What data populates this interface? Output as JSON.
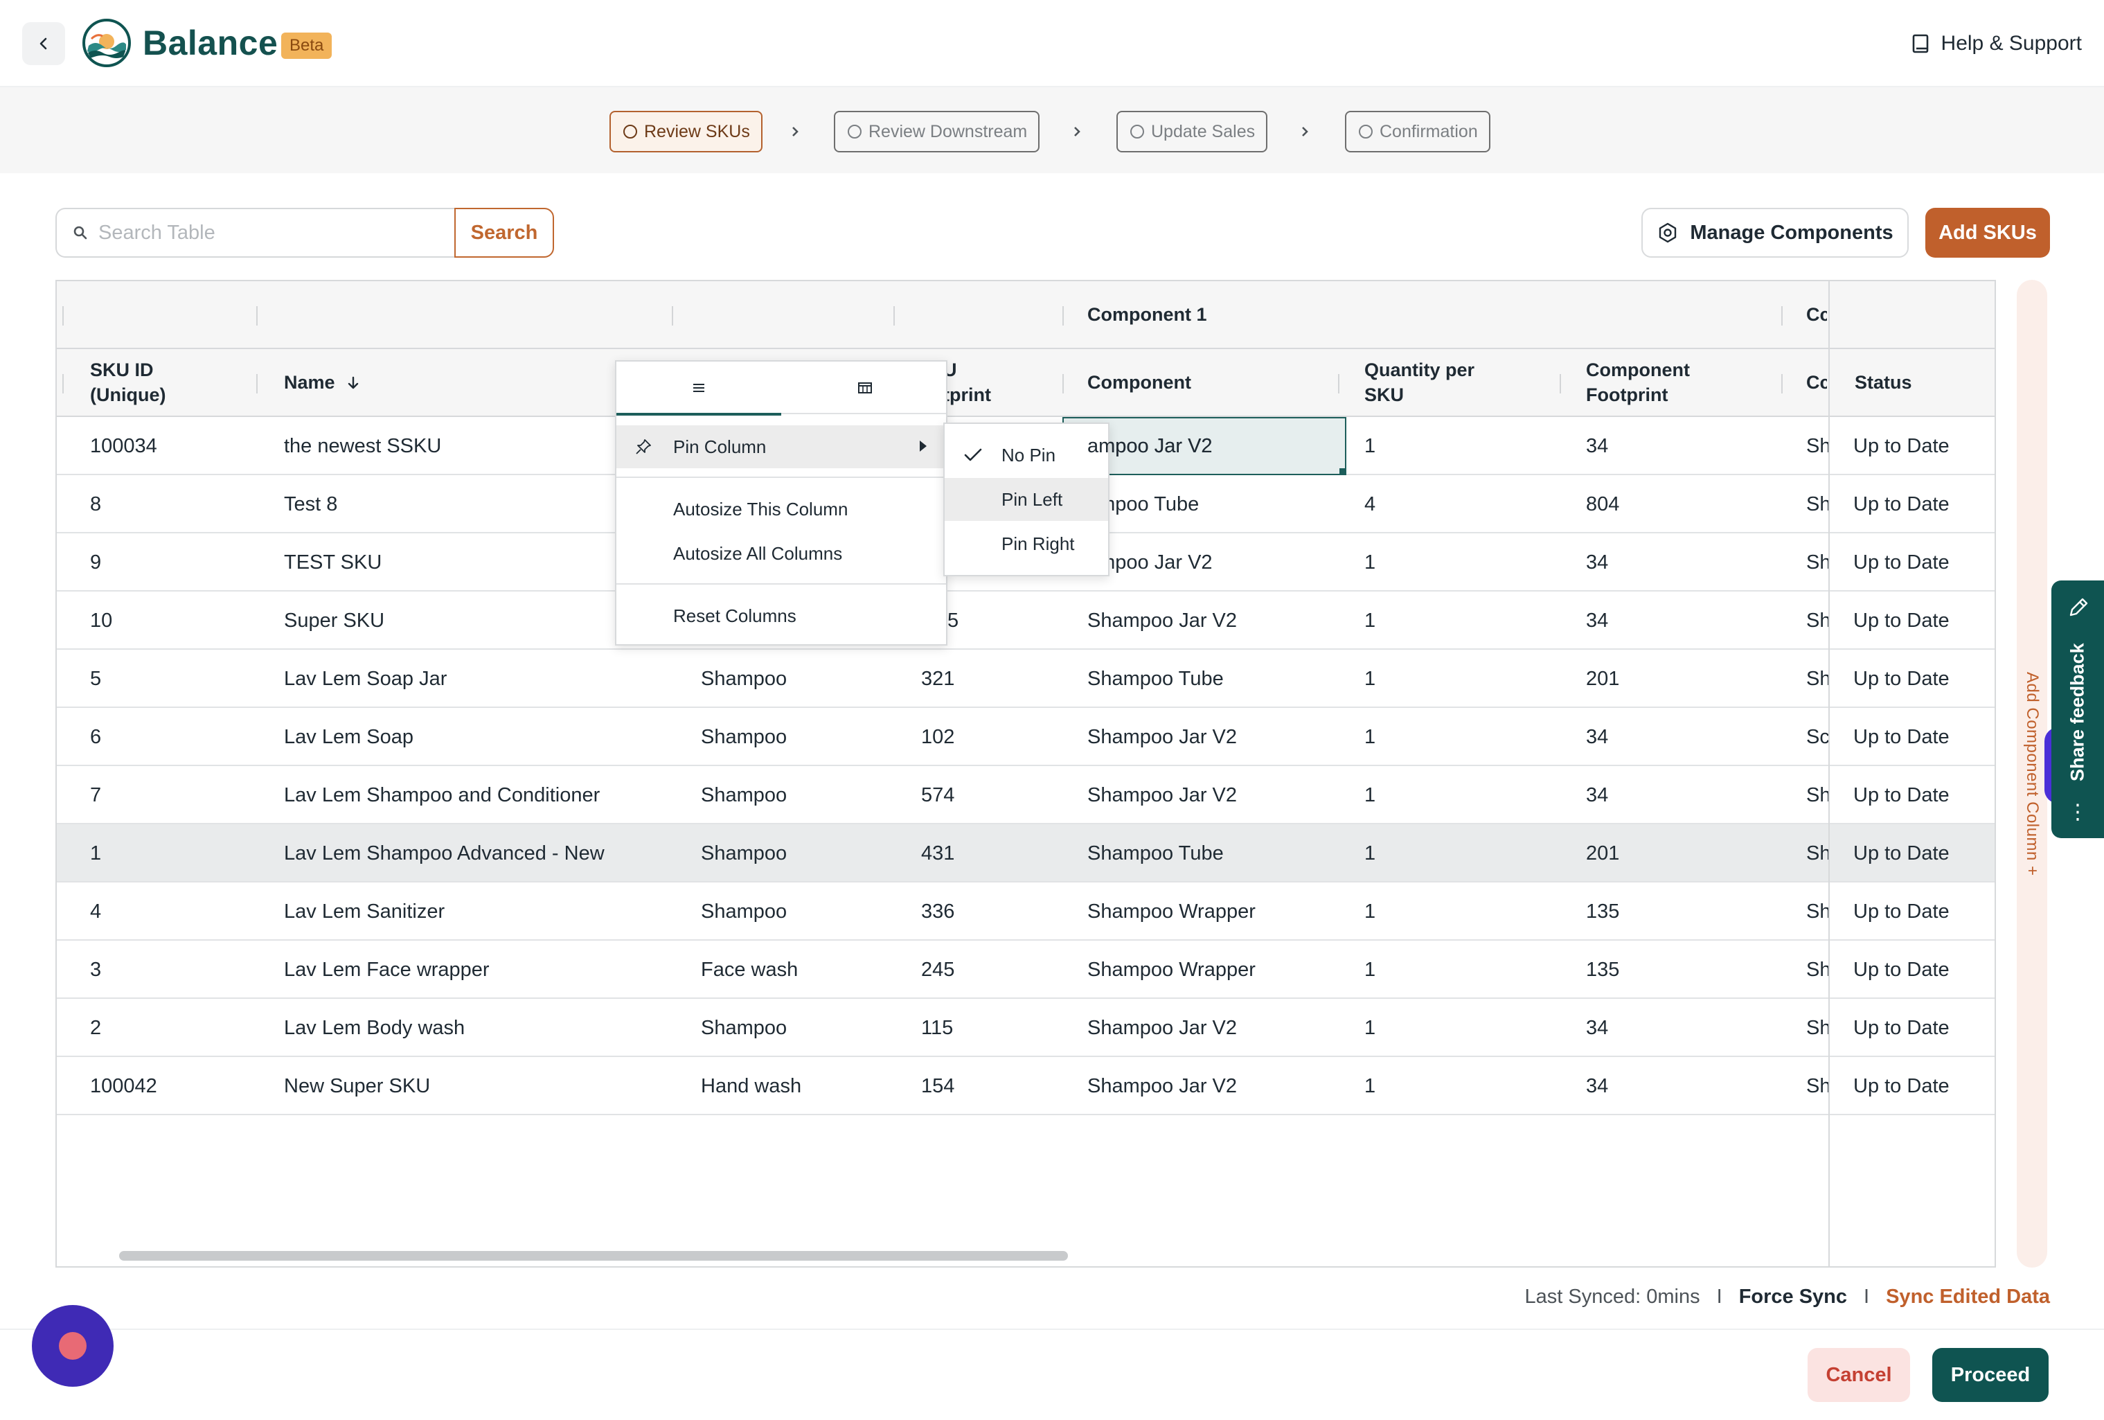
{
  "header": {
    "brand": "Balance",
    "badge": "Beta",
    "help_label": "Help & Support"
  },
  "steps": [
    {
      "label": "Review SKUs",
      "active": true
    },
    {
      "label": "Review Downstream",
      "active": false
    },
    {
      "label": "Update Sales",
      "active": false
    },
    {
      "label": "Confirmation",
      "active": false
    }
  ],
  "toolbar": {
    "search_placeholder": "Search Table",
    "search_label": "Search",
    "manage_label": "Manage Components",
    "add_label": "Add SKUs"
  },
  "table": {
    "group_headers": {
      "component_1": "Component 1",
      "component_2_partial": "Cc"
    },
    "columns": {
      "sku_id_line1": "SKU ID",
      "sku_id_line2": "(Unique)",
      "name": "Name",
      "footprint_line1": "U",
      "footprint_line2": "tprint",
      "component": "Component",
      "qty_line1": "Quantity per",
      "qty_line2": "SKU",
      "comp_fp_line1": "Component",
      "comp_fp_line2": "Footprint",
      "comp2_partial": "Cc",
      "status": "Status"
    },
    "rows": [
      {
        "sku": "100034",
        "name": "the newest SSKU",
        "category": "",
        "footprint": "",
        "component": "ampoo Jar V2",
        "qty": "1",
        "comp_fp": "34",
        "c2": "Sh",
        "status": "Up to Date"
      },
      {
        "sku": "8",
        "name": "Test 8",
        "category": "",
        "footprint": "",
        "component": "ampoo Tube",
        "qty": "4",
        "comp_fp": "804",
        "c2": "Sh",
        "status": "Up to Date"
      },
      {
        "sku": "9",
        "name": "TEST SKU",
        "category": "",
        "footprint": "",
        "component": "ampoo Jar V2",
        "qty": "1",
        "comp_fp": "34",
        "c2": "Sh",
        "status": "Up to Date"
      },
      {
        "sku": "10",
        "name": "Super SKU",
        "category": "",
        "footprint": "",
        "component": "Shampoo Jar V2",
        "qty": "1",
        "comp_fp": "34",
        "c2": "Sh",
        "status": "Up to Date"
      },
      {
        "sku": "5",
        "name": "Lav Lem Soap Jar",
        "category": "Shampoo",
        "footprint": "321",
        "component": "Shampoo Tube",
        "qty": "1",
        "comp_fp": "201",
        "c2": "Sh",
        "status": "Up to Date"
      },
      {
        "sku": "6",
        "name": "Lav Lem Soap",
        "category": "Shampoo",
        "footprint": "102",
        "component": "Shampoo Jar V2",
        "qty": "1",
        "comp_fp": "34",
        "c2": "Sc",
        "status": "Up to Date"
      },
      {
        "sku": "7",
        "name": "Lav Lem Shampoo and Conditioner",
        "category": "Shampoo",
        "footprint": "574",
        "component": "Shampoo Jar V2",
        "qty": "1",
        "comp_fp": "34",
        "c2": "Sh",
        "status": "Up to Date"
      },
      {
        "sku": "1",
        "name": "Lav Lem Shampoo Advanced - New",
        "category": "Shampoo",
        "footprint": "431",
        "component": "Shampoo Tube",
        "qty": "1",
        "comp_fp": "201",
        "c2": "Sh",
        "status": "Up to Date"
      },
      {
        "sku": "4",
        "name": "Lav Lem Sanitizer",
        "category": "Shampoo",
        "footprint": "336",
        "component": "Shampoo Wrapper",
        "qty": "1",
        "comp_fp": "135",
        "c2": "Sh",
        "status": "Up to Date"
      },
      {
        "sku": "3",
        "name": "Lav Lem Face wrapper",
        "category": "Face wash",
        "footprint": "245",
        "component": "Shampoo Wrapper",
        "qty": "1",
        "comp_fp": "135",
        "c2": "Sh",
        "status": "Up to Date"
      },
      {
        "sku": "2",
        "name": "Lav Lem Body wash",
        "category": "Shampoo",
        "footprint": "115",
        "component": "Shampoo Jar V2",
        "qty": "1",
        "comp_fp": "34",
        "c2": "Sh",
        "status": "Up to Date"
      },
      {
        "sku": "100042",
        "name": "New Super SKU",
        "category": "Hand wash",
        "footprint": "154",
        "component": "Shampoo Jar V2",
        "qty": "1",
        "comp_fp": "34",
        "c2": "Sh",
        "status": "Up to Date"
      }
    ],
    "row_10_partial_fp": "5"
  },
  "column_menu": {
    "pin_column": "Pin Column",
    "autosize_this": "Autosize This Column",
    "autosize_all": "Autosize All Columns",
    "reset": "Reset Columns",
    "pin_options": [
      "No Pin",
      "Pin Left",
      "Pin Right"
    ]
  },
  "side": {
    "add_component_column": "Add Component Column +",
    "share_feedback": "Share feedback",
    "more": "⋮"
  },
  "footer": {
    "last_synced": "Last Synced: 0mins",
    "separator": "I",
    "force_sync": "Force Sync",
    "sync_edited": "Sync Edited Data",
    "cancel_label": "Cancel",
    "proceed_label": "Proceed"
  },
  "colors": {
    "brand_teal": "#0f5451",
    "accent_orange": "#c0602c",
    "beta_badge": "#f2b35a"
  },
  "icons": {
    "back": "chevron-left-icon",
    "help": "book-icon",
    "search": "search-icon",
    "manage": "hexagon-gear-icon",
    "sort": "arrow-down-icon",
    "menu_tab_general": "menu-lines-icon",
    "menu_tab_columns": "columns-icon",
    "pin": "pin-icon",
    "check": "check-icon",
    "feedback": "edit-icon"
  }
}
